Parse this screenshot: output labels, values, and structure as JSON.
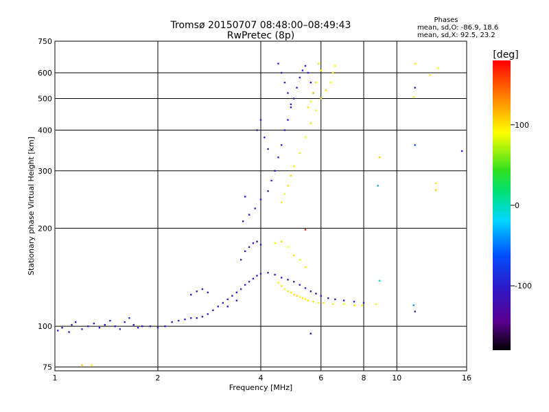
{
  "chart_data": {
    "type": "scatter",
    "title": "Tromsø 20150707 08:48:00–08:49:43",
    "subtitle": "RwPretec (8p)",
    "xlabel": "Frequency [MHz]",
    "ylabel": "Stationary phase Virtual Height [km]",
    "x_scale": "log2",
    "y_scale": "log",
    "xlim": [
      1,
      16
    ],
    "ylim": [
      73,
      750
    ],
    "x_ticks": [
      {
        "value": 1,
        "label": "1"
      },
      {
        "value": 2,
        "label": "2"
      },
      {
        "value": 4,
        "label": "4"
      },
      {
        "value": 6,
        "label": "6"
      },
      {
        "value": 8,
        "label": "8"
      },
      {
        "value": 10,
        "label": "10"
      },
      {
        "value": 16,
        "label": "16"
      }
    ],
    "y_ticks": [
      {
        "value": 75,
        "label": "75"
      },
      {
        "value": 100,
        "label": "100"
      },
      {
        "value": 200,
        "label": "200"
      },
      {
        "value": 300,
        "label": "300"
      },
      {
        "value": 400,
        "label": "400"
      },
      {
        "value": 500,
        "label": "500"
      },
      {
        "value": 600,
        "label": "600"
      },
      {
        "value": 750,
        "label": "750"
      }
    ],
    "grid": true,
    "colorbar": {
      "label": "[deg]",
      "range": [
        -180,
        180
      ],
      "ticks": [
        {
          "value": 100,
          "label": "100"
        },
        {
          "value": 0,
          "label": "0"
        },
        {
          "value": -100,
          "label": "-100"
        }
      ]
    },
    "stats": {
      "title": "Phases",
      "line1": "mean, sd,O: -86.9, 18.6",
      "line2": "mean, sd,X:  92.5, 23.2"
    },
    "series": [
      {
        "name": "O",
        "points": [
          [
            1.02,
            97,
            -90
          ],
          [
            1.05,
            99,
            -100
          ],
          [
            1.1,
            96,
            -110
          ],
          [
            1.12,
            101,
            -95
          ],
          [
            1.15,
            103,
            -100
          ],
          [
            1.2,
            98,
            -90
          ],
          [
            1.25,
            100,
            -105
          ],
          [
            1.3,
            102,
            -95
          ],
          [
            1.35,
            99,
            -100
          ],
          [
            1.4,
            101,
            -110
          ],
          [
            1.45,
            104,
            -90
          ],
          [
            1.5,
            100,
            -100
          ],
          [
            1.55,
            98,
            -95
          ],
          [
            1.6,
            103,
            -105
          ],
          [
            1.65,
            106,
            -80
          ],
          [
            1.7,
            101,
            -100
          ],
          [
            1.75,
            99,
            -90
          ],
          [
            1.8,
            100,
            -110
          ],
          [
            1.9,
            100,
            -100
          ],
          [
            2.0,
            99,
            -95
          ],
          [
            2.1,
            100,
            -100
          ],
          [
            2.2,
            103,
            -105
          ],
          [
            2.3,
            104,
            -90
          ],
          [
            2.4,
            105,
            -100
          ],
          [
            2.5,
            106,
            -95
          ],
          [
            2.6,
            106,
            -100
          ],
          [
            2.7,
            107,
            -105
          ],
          [
            2.8,
            109,
            -100
          ],
          [
            2.9,
            112,
            -95
          ],
          [
            3.0,
            115,
            -100
          ],
          [
            3.1,
            118,
            -95
          ],
          [
            3.2,
            121,
            -100
          ],
          [
            3.3,
            124,
            -110
          ],
          [
            3.4,
            127,
            -100
          ],
          [
            3.5,
            130,
            -90
          ],
          [
            3.6,
            134,
            -100
          ],
          [
            3.7,
            137,
            -105
          ],
          [
            3.8,
            140,
            -100
          ],
          [
            3.9,
            143,
            -95
          ],
          [
            4.0,
            145,
            -100
          ],
          [
            4.2,
            146,
            -90
          ],
          [
            4.4,
            144,
            -100
          ],
          [
            4.6,
            141,
            -95
          ],
          [
            4.8,
            139,
            -100
          ],
          [
            5.0,
            137,
            -105
          ],
          [
            5.2,
            134,
            -100
          ],
          [
            5.4,
            131,
            -95
          ],
          [
            5.6,
            128,
            -100
          ],
          [
            5.8,
            126,
            -110
          ],
          [
            6.0,
            124,
            -100
          ],
          [
            6.3,
            122,
            -95
          ],
          [
            6.6,
            121,
            -100
          ],
          [
            7.0,
            120,
            -100
          ],
          [
            7.5,
            119,
            -95
          ],
          [
            8.0,
            118,
            -100
          ],
          [
            3.5,
            160,
            -100
          ],
          [
            3.6,
            170,
            -95
          ],
          [
            3.7,
            175,
            -100
          ],
          [
            3.8,
            180,
            -105
          ],
          [
            3.9,
            182,
            -100
          ],
          [
            4.0,
            178,
            -95
          ],
          [
            3.55,
            210,
            -100
          ],
          [
            3.7,
            220,
            -105
          ],
          [
            3.85,
            230,
            -100
          ],
          [
            4.0,
            245,
            -95
          ],
          [
            4.2,
            260,
            -100
          ],
          [
            4.3,
            280,
            -90
          ],
          [
            4.4,
            300,
            -100
          ],
          [
            4.5,
            330,
            -105
          ],
          [
            4.6,
            360,
            -100
          ],
          [
            4.7,
            400,
            -95
          ],
          [
            4.8,
            430,
            -100
          ],
          [
            4.9,
            470,
            -105
          ],
          [
            5.0,
            500,
            -100
          ],
          [
            5.1,
            540,
            -95
          ],
          [
            5.2,
            580,
            -100
          ],
          [
            5.3,
            610,
            -90
          ],
          [
            5.4,
            630,
            -100
          ],
          [
            4.5,
            640,
            -95
          ],
          [
            4.6,
            600,
            -100
          ],
          [
            4.7,
            560,
            -105
          ],
          [
            4.8,
            520,
            -100
          ],
          [
            4.9,
            480,
            -95
          ],
          [
            5.5,
            600,
            -100
          ],
          [
            5.6,
            560,
            -110
          ],
          [
            5.7,
            520,
            -100
          ],
          [
            3.9,
            400,
            -100
          ],
          [
            4.0,
            430,
            -95
          ],
          [
            4.1,
            380,
            -100
          ],
          [
            4.2,
            350,
            -105
          ],
          [
            3.6,
            250,
            -100
          ],
          [
            3.4,
            120,
            -95
          ],
          [
            3.2,
            115,
            -100
          ],
          [
            2.5,
            125,
            -90
          ],
          [
            2.6,
            128,
            -100
          ],
          [
            2.7,
            130,
            -95
          ],
          [
            2.8,
            127,
            -100
          ]
        ]
      },
      {
        "name": "X",
        "points": [
          [
            4.5,
            136,
            95
          ],
          [
            4.6,
            133,
            100
          ],
          [
            4.7,
            130,
            90
          ],
          [
            4.8,
            128,
            100
          ],
          [
            4.9,
            127,
            95
          ],
          [
            5.0,
            125,
            100
          ],
          [
            5.1,
            124,
            105
          ],
          [
            5.2,
            123,
            90
          ],
          [
            5.3,
            122,
            100
          ],
          [
            5.4,
            121,
            95
          ],
          [
            5.5,
            120,
            100
          ],
          [
            5.7,
            119,
            105
          ],
          [
            5.9,
            118,
            95
          ],
          [
            6.1,
            118,
            100
          ],
          [
            6.5,
            117,
            100
          ],
          [
            7.0,
            117,
            90
          ],
          [
            7.5,
            116,
            100
          ],
          [
            7.9,
            116,
            95
          ],
          [
            4.6,
            240,
            100
          ],
          [
            4.7,
            255,
            95
          ],
          [
            4.8,
            270,
            100
          ],
          [
            4.9,
            290,
            105
          ],
          [
            5.0,
            310,
            95
          ],
          [
            5.2,
            340,
            100
          ],
          [
            5.4,
            380,
            90
          ],
          [
            5.6,
            420,
            100
          ],
          [
            5.8,
            460,
            95
          ],
          [
            6.0,
            500,
            100
          ],
          [
            6.2,
            530,
            105
          ],
          [
            6.4,
            560,
            95
          ],
          [
            6.5,
            600,
            100
          ],
          [
            6.6,
            630,
            90
          ],
          [
            5.9,
            640,
            100
          ],
          [
            6.0,
            610,
            95
          ],
          [
            5.8,
            560,
            100
          ],
          [
            5.7,
            520,
            105
          ],
          [
            5.6,
            490,
            95
          ],
          [
            5.5,
            470,
            100
          ],
          [
            4.4,
            180,
            95
          ],
          [
            4.6,
            182,
            100
          ],
          [
            4.8,
            175,
            90
          ],
          [
            5.0,
            165,
            100
          ],
          [
            5.2,
            160,
            95
          ],
          [
            5.4,
            152,
            100
          ],
          [
            8.9,
            330,
            110
          ],
          [
            8.7,
            117,
            95
          ],
          [
            11.3,
            640,
            100
          ],
          [
            13.2,
            620,
            95
          ],
          [
            13.0,
            275,
            100
          ],
          [
            13.0,
            262,
            105
          ],
          [
            11.2,
            505,
            95
          ],
          [
            12.5,
            590,
            100
          ]
        ]
      },
      {
        "name": "other",
        "points": [
          [
            11.2,
            116,
            -40
          ],
          [
            8.8,
            270,
            -30
          ],
          [
            11.3,
            360,
            -70
          ],
          [
            11.3,
            540,
            -120
          ],
          [
            5.4,
            198,
            170
          ],
          [
            5.6,
            95,
            -130
          ],
          [
            15.5,
            345,
            -110
          ],
          [
            1.2,
            76,
            110
          ],
          [
            1.28,
            76,
            100
          ],
          [
            11.3,
            111,
            -120
          ],
          [
            8.9,
            138,
            0
          ]
        ]
      }
    ]
  }
}
